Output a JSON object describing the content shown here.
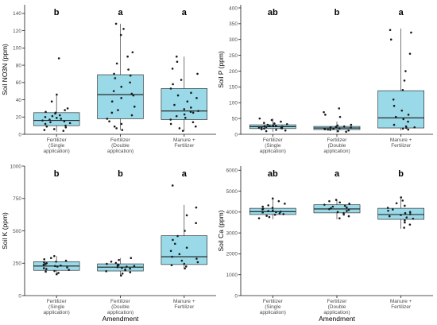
{
  "colors": {
    "box_fill": "#9ad9e8",
    "box_stroke": "#1a1a1a",
    "point": "#1a1a1a",
    "axis": "#1a1a1a"
  },
  "chart_data": [
    {
      "type": "box",
      "title": "",
      "ylabel": "Soil NO3N (ppm)",
      "xlabel": "",
      "ylim": [
        0,
        150
      ],
      "yticks": [
        "0",
        "20",
        "40",
        "60",
        "80",
        "100",
        "120",
        "140"
      ],
      "categories": [
        "Fertilizer\n(Single\napplication)",
        "Fertilizer\n(Double\napplication)",
        "Manure +\nFertilizer"
      ],
      "letters": [
        "b",
        "a",
        "a"
      ],
      "boxes": [
        {
          "whisker_low": 3,
          "q1": 10,
          "median": 16,
          "q3": 25,
          "whisker_high": 47
        },
        {
          "whisker_low": 5,
          "q1": 18,
          "median": 46,
          "q3": 69,
          "whisker_high": 128
        },
        {
          "whisker_low": 4,
          "q1": 17,
          "median": 27,
          "q3": 53,
          "whisker_high": 90
        }
      ],
      "points": [
        [
          4,
          5,
          6,
          8,
          9,
          10,
          12,
          13,
          14,
          15,
          16,
          17,
          18,
          19,
          20,
          21,
          22,
          24,
          25,
          26,
          28,
          30,
          38,
          46,
          88
        ],
        [
          5,
          7,
          9,
          12,
          15,
          18,
          22,
          25,
          28,
          32,
          38,
          42,
          45,
          47,
          50,
          55,
          60,
          65,
          68,
          70,
          75,
          82,
          90,
          95,
          115,
          122,
          128
        ],
        [
          4,
          7,
          9,
          12,
          14,
          17,
          19,
          21,
          23,
          25,
          26,
          27,
          29,
          31,
          34,
          38,
          42,
          45,
          48,
          53,
          58,
          63,
          70,
          76,
          84,
          90
        ]
      ]
    },
    {
      "type": "box",
      "title": "",
      "ylabel": "Soil P (ppm)",
      "xlabel": "",
      "ylim": [
        0,
        410
      ],
      "yticks": [
        "0",
        "50",
        "100",
        "150",
        "200",
        "250",
        "300",
        "350",
        "400"
      ],
      "categories": [
        "Fertilizer\n(Single\napplication)",
        "Fertilizer\n(Double\napplication)",
        "Manure +\nFertilizer"
      ],
      "letters": [
        "ab",
        "b",
        "a"
      ],
      "boxes": [
        {
          "whisker_low": 8,
          "q1": 18,
          "median": 24,
          "q3": 30,
          "whisker_high": 50
        },
        {
          "whisker_low": 6,
          "q1": 15,
          "median": 20,
          "q3": 25,
          "whisker_high": 40
        },
        {
          "whisker_low": 12,
          "q1": 20,
          "median": 52,
          "q3": 138,
          "whisker_high": 335
        }
      ],
      "points": [
        [
          10,
          12,
          14,
          16,
          18,
          19,
          20,
          21,
          22,
          23,
          24,
          25,
          26,
          27,
          28,
          30,
          32,
          34,
          36,
          40,
          45,
          50
        ],
        [
          8,
          10,
          12,
          14,
          15,
          16,
          17,
          18,
          19,
          20,
          21,
          22,
          23,
          24,
          25,
          28,
          30,
          55,
          62,
          70,
          82
        ],
        [
          15,
          18,
          20,
          22,
          25,
          30,
          40,
          48,
          55,
          62,
          75,
          90,
          110,
          140,
          170,
          200,
          255,
          300,
          322,
          330
        ]
      ]
    },
    {
      "type": "box",
      "title": "",
      "ylabel": "Soil K (ppm)",
      "xlabel": "Amendment",
      "ylim": [
        0,
        1000
      ],
      "yticks": [
        "0",
        "250",
        "500",
        "750",
        "1000"
      ],
      "categories": [
        "Fertilizer\n(Single\napplication)",
        "Fertilizer\n(Double\napplication)",
        "Manure +\nFertilizer"
      ],
      "letters": [
        "b",
        "b",
        "a"
      ],
      "boxes": [
        {
          "whisker_low": 160,
          "q1": 195,
          "median": 228,
          "q3": 262,
          "whisker_high": 305
        },
        {
          "whisker_low": 150,
          "q1": 190,
          "median": 220,
          "q3": 245,
          "whisker_high": 290
        },
        {
          "whisker_low": 205,
          "q1": 240,
          "median": 300,
          "q3": 462,
          "whisker_high": 700
        }
      ],
      "points": [
        [
          165,
          175,
          185,
          190,
          198,
          205,
          212,
          218,
          224,
          228,
          232,
          238,
          244,
          250,
          256,
          262,
          270,
          280,
          290,
          305
        ],
        [
          155,
          170,
          180,
          188,
          195,
          202,
          208,
          214,
          220,
          224,
          228,
          232,
          236,
          240,
          245,
          252,
          262,
          275,
          290
        ],
        [
          210,
          225,
          235,
          245,
          258,
          270,
          285,
          300,
          320,
          345,
          370,
          400,
          430,
          460,
          500,
          560,
          620,
          680,
          850
        ]
      ]
    },
    {
      "type": "box",
      "title": "",
      "ylabel": "Soil Ca (ppm)",
      "xlabel": "Amendment",
      "ylim": [
        0,
        6200
      ],
      "yticks": [
        "0",
        "1000",
        "2000",
        "3000",
        "4000",
        "5000",
        "6000"
      ],
      "categories": [
        "Fertilizer\n(Single\napplication)",
        "Fertilizer\n(Double\napplication)",
        "Manure +\nFertilizer"
      ],
      "letters": [
        "ab",
        "a",
        "b"
      ],
      "boxes": [
        {
          "whisker_low": 3650,
          "q1": 3880,
          "median": 4020,
          "q3": 4180,
          "whisker_high": 4700
        },
        {
          "whisker_low": 3650,
          "q1": 3960,
          "median": 4150,
          "q3": 4350,
          "whisker_high": 4600
        },
        {
          "whisker_low": 3200,
          "q1": 3650,
          "median": 3880,
          "q3": 4180,
          "whisker_high": 4700
        }
      ],
      "points": [
        [
          3700,
          3760,
          3820,
          3870,
          3900,
          3940,
          3980,
          4000,
          4020,
          4050,
          4080,
          4120,
          4160,
          4200,
          4260,
          4320,
          4400,
          4520,
          4650
        ],
        [
          3700,
          3800,
          3880,
          3950,
          4000,
          4050,
          4100,
          4140,
          4180,
          4220,
          4260,
          4300,
          4350,
          4400,
          4460,
          4520,
          4580
        ],
        [
          3250,
          3400,
          3500,
          3600,
          3680,
          3740,
          3800,
          3860,
          3900,
          3950,
          4000,
          4060,
          4120,
          4200,
          4300,
          4420,
          4550,
          4700
        ]
      ]
    }
  ]
}
